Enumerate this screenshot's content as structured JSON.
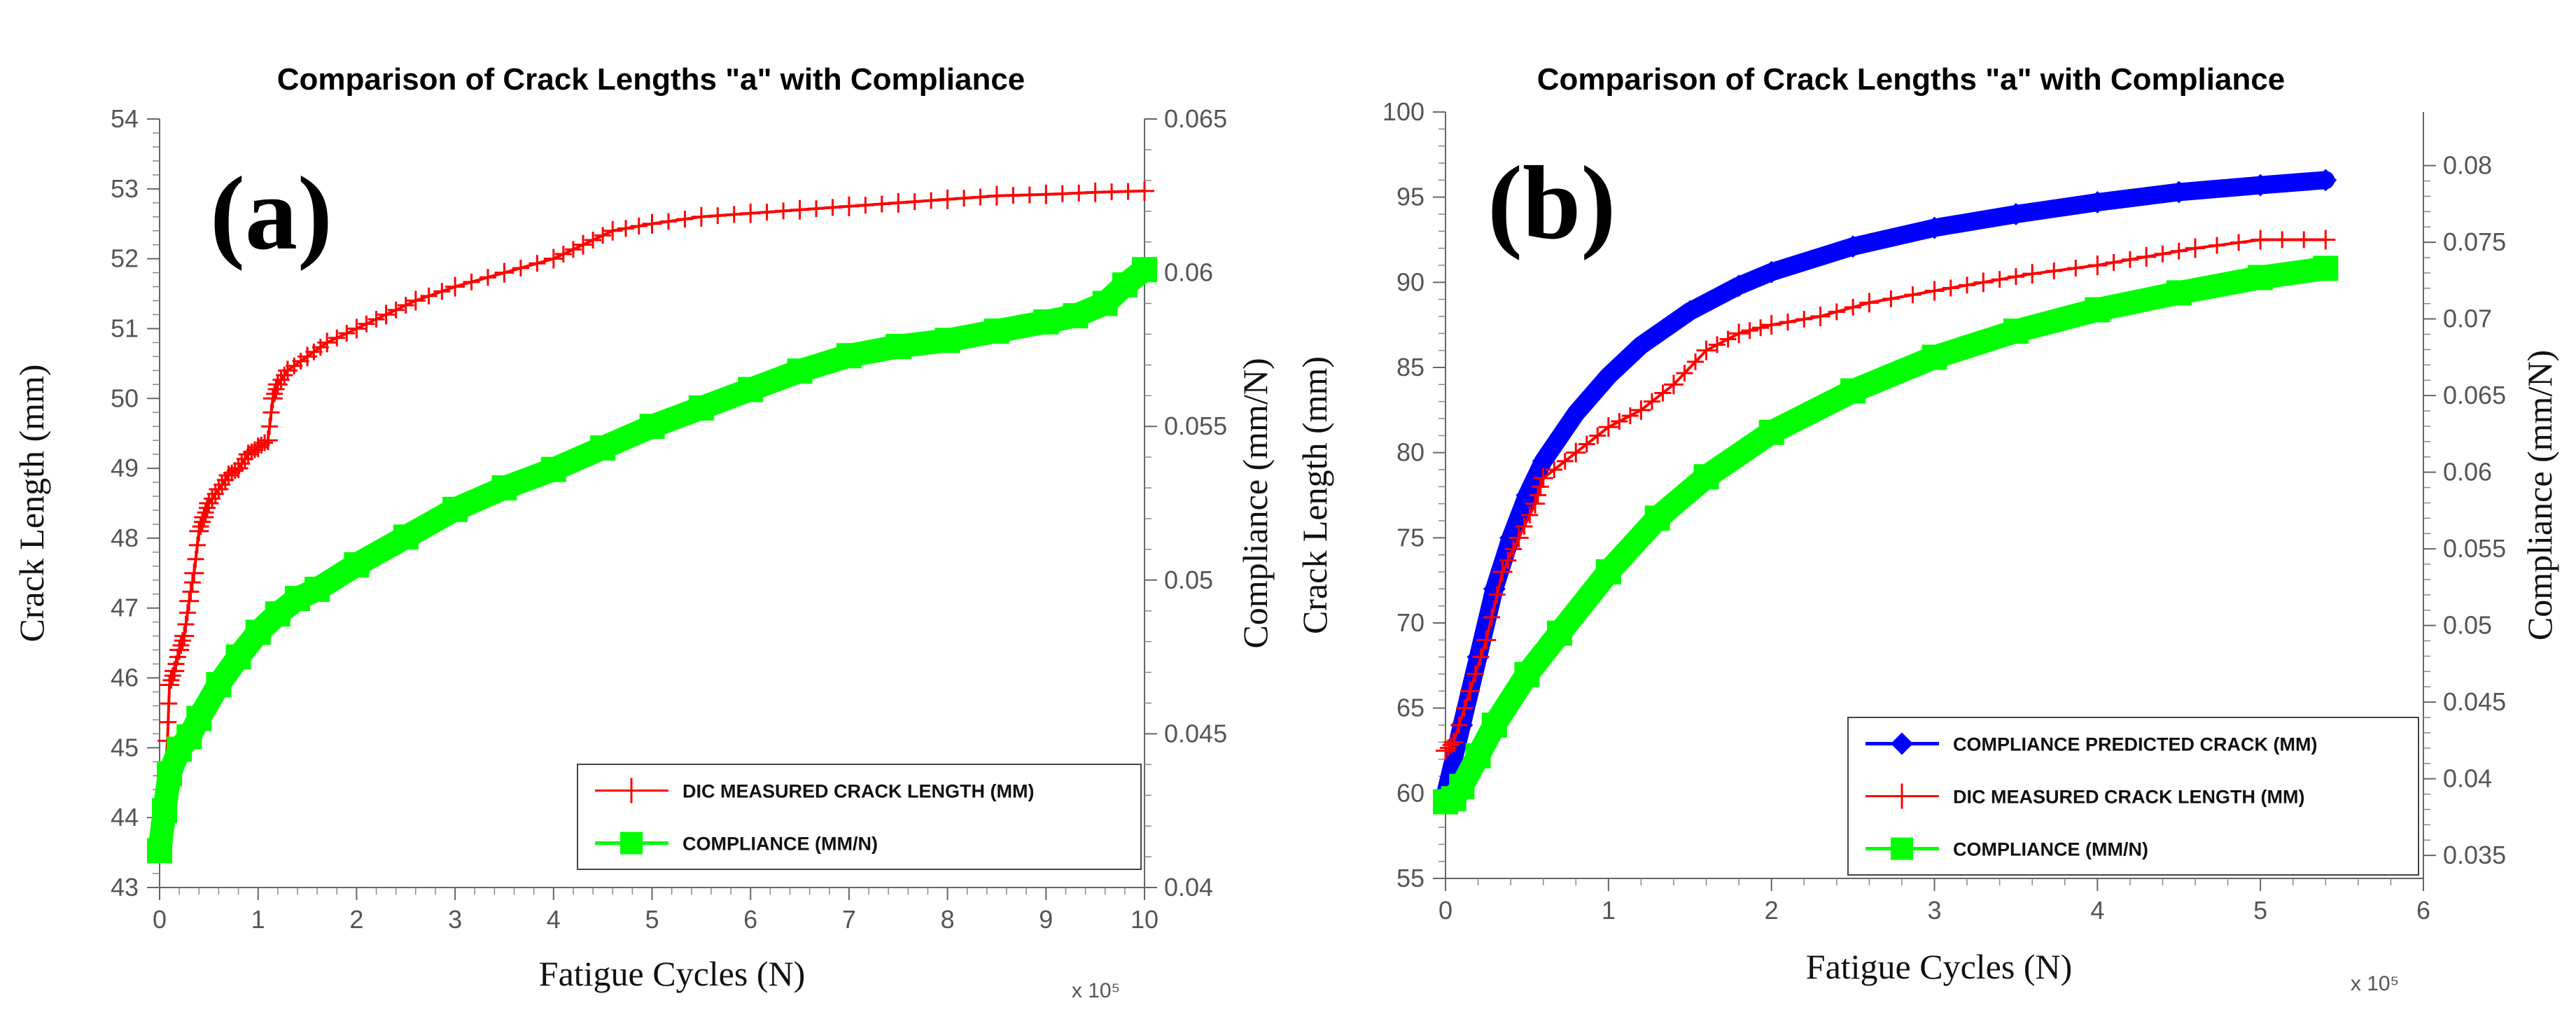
{
  "chart_data": [
    {
      "type": "line",
      "panel_label": "(a)",
      "title": "Comparison of Crack Lengths \"a\" with Compliance",
      "xlabel": "Fatigue Cycles (N)",
      "x_multiplier": "x 10⁵",
      "xlim": [
        0,
        10
      ],
      "x_ticks": [
        "0",
        "1",
        "2",
        "3",
        "4",
        "5",
        "6",
        "7",
        "8",
        "9",
        "10"
      ],
      "ylabel": "Crack Length (mm)",
      "ylim": [
        43,
        54
      ],
      "y_ticks": [
        "43",
        "44",
        "45",
        "46",
        "47",
        "48",
        "49",
        "50",
        "51",
        "52",
        "53",
        "54"
      ],
      "y2label": "Compliance (mm/N)",
      "y2lim": [
        0.04,
        0.065
      ],
      "y2_ticks": [
        "0.04",
        "0.045",
        "0.05",
        "0.055",
        "0.06",
        "0.065"
      ],
      "legend_position": "bottom-right",
      "series": [
        {
          "name": "DIC MEASURED CRACK LENGTH (MM)",
          "axis": "left",
          "color": "#ff0000",
          "marker": "plus",
          "x": [
            0,
            0.08,
            0.1,
            0.15,
            0.2,
            0.25,
            0.3,
            0.35,
            0.4,
            0.45,
            0.5,
            0.6,
            0.7,
            0.8,
            0.9,
            1.0,
            1.1,
            1.15,
            1.2,
            1.3,
            1.5,
            1.7,
            2.0,
            2.3,
            2.6,
            3.0,
            3.5,
            4.0,
            4.3,
            4.6,
            5.0,
            5.5,
            6.0,
            6.5,
            7.0,
            7.5,
            8.0,
            8.5,
            9.0,
            9.5,
            10.0
          ],
          "y": [
            43.6,
            45.1,
            45.9,
            46.1,
            46.4,
            46.6,
            47.1,
            47.5,
            48.1,
            48.3,
            48.5,
            48.7,
            48.9,
            49.0,
            49.2,
            49.3,
            49.4,
            50.0,
            50.2,
            50.4,
            50.6,
            50.8,
            51.0,
            51.2,
            51.4,
            51.6,
            51.8,
            52.0,
            52.2,
            52.4,
            52.5,
            52.6,
            52.65,
            52.7,
            52.75,
            52.8,
            52.85,
            52.9,
            52.92,
            52.95,
            52.97
          ]
        },
        {
          "name": "COMPLIANCE (MM/N)",
          "axis": "right",
          "color": "#00ff00",
          "marker": "square",
          "x": [
            0,
            0.05,
            0.1,
            0.2,
            0.3,
            0.4,
            0.6,
            0.8,
            1.0,
            1.2,
            1.4,
            1.6,
            2.0,
            2.5,
            3.0,
            3.5,
            4.0,
            4.5,
            5.0,
            5.5,
            6.0,
            6.5,
            7.0,
            7.5,
            8.0,
            8.5,
            9.0,
            9.3,
            9.6,
            9.8,
            10.0
          ],
          "y": [
            0.0412,
            0.0425,
            0.0437,
            0.0445,
            0.0449,
            0.0455,
            0.0466,
            0.0475,
            0.0483,
            0.0489,
            0.0494,
            0.0497,
            0.0505,
            0.0514,
            0.0523,
            0.053,
            0.0536,
            0.0543,
            0.055,
            0.0556,
            0.0562,
            0.0568,
            0.0573,
            0.0576,
            0.0578,
            0.0581,
            0.0584,
            0.0586,
            0.059,
            0.0596,
            0.0601
          ]
        }
      ]
    },
    {
      "type": "line",
      "panel_label": "(b)",
      "title": "Comparison of Crack Lengths \"a\" with Compliance",
      "xlabel": "Fatigue Cycles (N)",
      "x_multiplier": "x 10⁵",
      "xlim": [
        0,
        6
      ],
      "x_ticks": [
        "0",
        "1",
        "2",
        "3",
        "4",
        "5",
        "6"
      ],
      "ylabel": "Crack Length (mm)",
      "ylim": [
        55,
        100
      ],
      "y_ticks": [
        "55",
        "60",
        "65",
        "70",
        "75",
        "80",
        "85",
        "90",
        "95",
        "100"
      ],
      "y2label": "Compliance (mm/N)",
      "y2lim": [
        0.0335,
        0.0835
      ],
      "y2_ticks": [
        "0.035",
        "0.04",
        "0.045",
        "0.05",
        "0.055",
        "0.06",
        "0.065",
        "0.07",
        "0.075",
        "0.08"
      ],
      "legend_position": "bottom-right",
      "series": [
        {
          "name": "COMPLIANCE PREDICTED CRACK (MM)",
          "axis": "left",
          "color": "#0000ff",
          "marker": "diamond",
          "x": [
            0,
            0.1,
            0.2,
            0.3,
            0.4,
            0.5,
            0.6,
            0.8,
            1.0,
            1.2,
            1.5,
            1.8,
            2.0,
            2.5,
            3.0,
            3.5,
            4.0,
            4.5,
            5.0,
            5.4
          ],
          "y": [
            60,
            64,
            68,
            72,
            75,
            77.5,
            79.5,
            82.3,
            84.5,
            86.3,
            88.3,
            89.8,
            90.6,
            92.1,
            93.2,
            94,
            94.7,
            95.3,
            95.7,
            96
          ]
        },
        {
          "name": "DIC MEASURED CRACK LENGTH (MM)",
          "axis": "left",
          "color": "#ff0000",
          "marker": "plus",
          "x": [
            0,
            0.05,
            0.15,
            0.25,
            0.35,
            0.45,
            0.55,
            0.6,
            0.8,
            1.0,
            1.2,
            1.4,
            1.6,
            1.8,
            2.0,
            2.3,
            2.6,
            3.0,
            3.3,
            3.6,
            4.0,
            4.3,
            4.6,
            5.0,
            5.4
          ],
          "y": [
            62.5,
            63,
            66,
            69,
            73,
            75,
            77,
            78.5,
            80,
            81.5,
            82.5,
            84,
            86,
            87,
            87.5,
            88,
            88.8,
            89.5,
            90,
            90.5,
            91,
            91.5,
            92,
            92.5,
            92.5
          ]
        },
        {
          "name": "COMPLIANCE (MM/N)",
          "axis": "right",
          "color": "#00ff00",
          "marker": "square",
          "x": [
            0,
            0.05,
            0.1,
            0.2,
            0.3,
            0.5,
            0.7,
            1.0,
            1.3,
            1.6,
            2.0,
            2.5,
            3.0,
            3.5,
            4.0,
            4.5,
            5.0,
            5.4
          ],
          "y": [
            0.0385,
            0.0387,
            0.0395,
            0.0415,
            0.0435,
            0.0468,
            0.0495,
            0.0535,
            0.057,
            0.0597,
            0.0626,
            0.0653,
            0.0675,
            0.0692,
            0.0706,
            0.0717,
            0.0727,
            0.0733
          ]
        }
      ]
    }
  ]
}
